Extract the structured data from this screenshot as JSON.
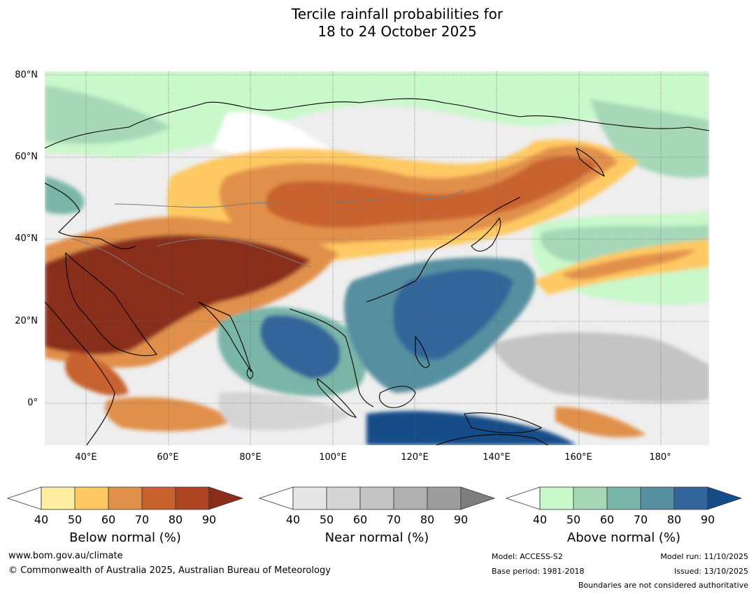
{
  "title": {
    "line1": "Tercile rainfall probabilities for",
    "line2": "18 to 24 October 2025"
  },
  "map": {
    "latitude_labels": [
      "80°N",
      "60°N",
      "40°N",
      "20°N",
      "0°"
    ],
    "longitude_labels": [
      "40°E",
      "60°E",
      "80°E",
      "100°E",
      "120°E",
      "140°E",
      "160°E",
      "180°"
    ],
    "extent": {
      "lon_min": 30,
      "lon_max": 191,
      "lat_min": -10,
      "lat_max": 81
    }
  },
  "legends": [
    {
      "label": "Below normal (%)",
      "ticks": [
        "40",
        "50",
        "60",
        "70",
        "80",
        "90"
      ],
      "colors": [
        "#ffffff",
        "#ffeda0",
        "#fec962",
        "#e1904b",
        "#c8622f",
        "#ad4523",
        "#8a2d1b"
      ]
    },
    {
      "label": "Near normal (%)",
      "ticks": [
        "40",
        "50",
        "60",
        "70",
        "80",
        "90"
      ],
      "colors": [
        "#ffffff",
        "#e6e6e6",
        "#d5d5d5",
        "#c4c4c4",
        "#b0b0b0",
        "#9d9d9d",
        "#7f7f7f"
      ]
    },
    {
      "label": "Above normal (%)",
      "ticks": [
        "40",
        "50",
        "60",
        "70",
        "80",
        "90"
      ],
      "colors": [
        "#ffffff",
        "#c9f8ca",
        "#a6d8b8",
        "#7ab6a8",
        "#5690a0",
        "#33659a",
        "#164d88"
      ]
    }
  ],
  "footer": {
    "website": "www.bom.gov.au/climate",
    "copyright": "© Commonwealth of Australia 2025, Australian Bureau of Meteorology",
    "model": "Model: ACCESS-S2",
    "base_period": "Base period: 1981-2018",
    "model_run": "Model run: 11/10/2025",
    "issued": "Issued: 13/10/2025",
    "disclaimer": "Boundaries are not considered authoritative"
  }
}
